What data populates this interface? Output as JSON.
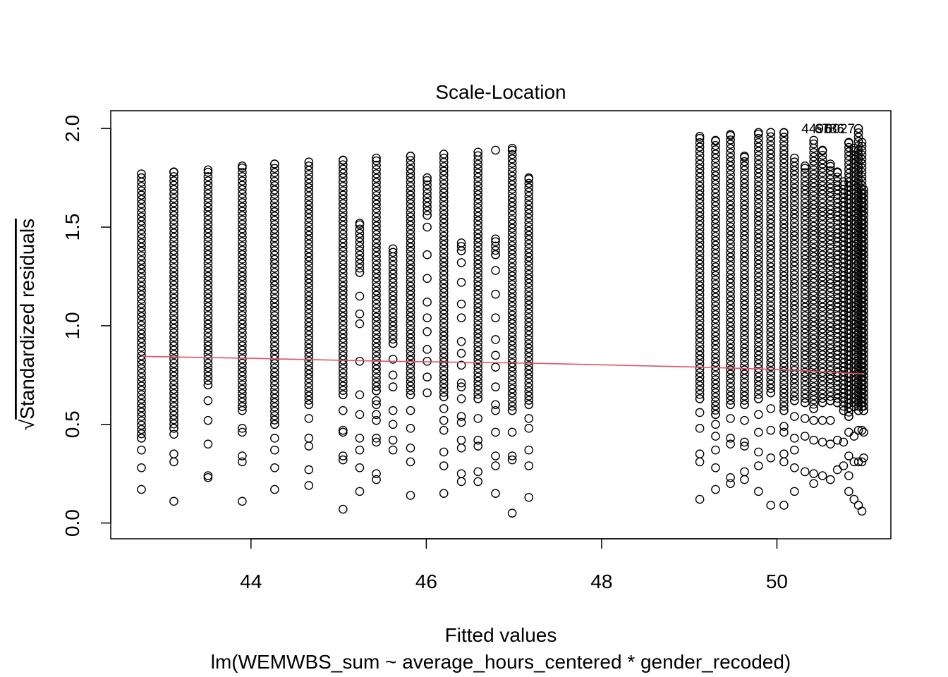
{
  "chart_data": {
    "type": "scatter",
    "title": "Scale-Location",
    "xlabel": "Fitted values",
    "ylabel": "Standardized residuals",
    "ylabel_prefix": "√",
    "caption": "lm(WEMWBS_sum ~ average_hours_centered * gender_recoded)",
    "xlim": [
      42.4,
      51.3
    ],
    "ylim": [
      -0.08,
      2.09
    ],
    "x_ticks": [
      44,
      46,
      48,
      50
    ],
    "y_ticks": [
      0.0,
      0.5,
      1.0,
      1.5,
      2.0
    ],
    "x_tick_labels": [
      "44",
      "46",
      "48",
      "50"
    ],
    "y_tick_labels": [
      "0.0",
      "0.5",
      "1.0",
      "1.5",
      "2.0"
    ],
    "grid": false,
    "legend": "none",
    "point_color": "#000000",
    "smooth_color": "#DF536B",
    "columns": [
      {
        "x": 42.75,
        "min": 0.17,
        "max": 1.77,
        "outliers": [
          0.28,
          0.37,
          0.43
        ]
      },
      {
        "x": 43.12,
        "min": 0.11,
        "max": 1.78,
        "outliers": [
          0.31,
          0.35,
          0.45,
          0.48
        ]
      },
      {
        "x": 43.51,
        "min": 0.23,
        "max": 1.79,
        "outliers": [
          0.24,
          0.4,
          0.52,
          0.62,
          0.7
        ]
      },
      {
        "x": 43.9,
        "min": 0.11,
        "max": 1.81,
        "outliers": [
          0.31,
          0.34,
          0.46,
          0.48,
          0.57,
          0.59
        ]
      },
      {
        "x": 44.27,
        "min": 0.17,
        "max": 1.82,
        "outliers": [
          0.28,
          0.37,
          0.43,
          0.5
        ]
      },
      {
        "x": 44.66,
        "min": 0.19,
        "max": 1.83,
        "outliers": [
          0.27,
          0.39,
          0.43,
          0.53,
          0.6
        ]
      },
      {
        "x": 45.05,
        "min": 0.07,
        "max": 1.84,
        "outliers": [
          0.32,
          0.34,
          0.46,
          0.47,
          0.57,
          0.65
        ]
      },
      {
        "x": 45.24,
        "min": 0.16,
        "max": 1.52,
        "outliers": [
          0.28,
          0.37,
          0.43,
          0.55,
          0.65,
          0.82,
          1.01,
          1.06,
          1.15,
          1.27
        ]
      },
      {
        "x": 45.43,
        "min": 0.22,
        "max": 1.85,
        "outliers": [
          0.25,
          0.41,
          0.43,
          0.52,
          0.55,
          0.6,
          0.62,
          0.67
        ]
      },
      {
        "x": 45.62,
        "min": 0.37,
        "max": 1.39,
        "outliers": [
          0.42,
          0.5,
          0.57,
          0.69,
          0.75,
          0.83,
          0.91
        ]
      },
      {
        "x": 45.82,
        "min": 0.14,
        "max": 1.86,
        "outliers": [
          0.31,
          0.38,
          0.48,
          0.57,
          0.65
        ]
      },
      {
        "x": 46.01,
        "min": 0.66,
        "max": 1.75,
        "outliers": [
          0.74,
          0.82,
          0.88,
          0.97,
          1.04,
          1.12,
          1.24,
          1.36,
          1.5,
          1.56
        ]
      },
      {
        "x": 46.2,
        "min": 0.15,
        "max": 1.87,
        "outliers": [
          0.29,
          0.36,
          0.47,
          0.52,
          0.58,
          0.64
        ]
      },
      {
        "x": 46.4,
        "min": 0.21,
        "max": 1.42,
        "outliers": [
          0.25,
          0.38,
          0.42,
          0.51,
          0.54,
          0.63,
          0.69,
          0.71,
          0.8,
          0.86,
          0.92,
          1.04,
          1.11,
          1.22,
          1.32,
          1.38
        ]
      },
      {
        "x": 46.59,
        "min": 0.21,
        "max": 1.88,
        "outliers": [
          0.26,
          0.39,
          0.42,
          0.53,
          0.63
        ]
      },
      {
        "x": 46.79,
        "min": 0.15,
        "max": 1.44,
        "outliers": [
          0.29,
          0.34,
          0.46,
          0.57,
          0.6,
          0.69,
          0.79,
          0.85,
          0.93,
          1.04,
          1.16,
          1.28,
          1.36
        ],
        "extra": [
          1.89
        ]
      },
      {
        "x": 46.98,
        "min": 0.05,
        "max": 1.9,
        "outliers": [
          0.32,
          0.34,
          0.46,
          0.57
        ]
      },
      {
        "x": 47.17,
        "min": 0.13,
        "max": 1.75,
        "outliers": [
          0.29,
          0.37,
          0.48,
          0.53,
          0.6
        ]
      },
      {
        "x": 49.12,
        "min": 0.12,
        "max": 1.96,
        "outliers": [
          0.31,
          0.35,
          0.48,
          0.56,
          0.63
        ]
      },
      {
        "x": 49.3,
        "min": 0.17,
        "max": 1.94,
        "outliers": [
          0.28,
          0.37,
          0.44,
          0.5,
          0.55
        ]
      },
      {
        "x": 49.47,
        "min": 0.2,
        "max": 1.97,
        "outliers": [
          0.23,
          0.4,
          0.43,
          0.53,
          0.6
        ]
      },
      {
        "x": 49.63,
        "min": 0.22,
        "max": 1.86,
        "outliers": [
          0.26,
          0.39,
          0.41,
          0.52,
          0.6
        ]
      },
      {
        "x": 49.79,
        "min": 0.16,
        "max": 1.98,
        "outliers": [
          0.29,
          0.36,
          0.46,
          0.55,
          0.63
        ]
      },
      {
        "x": 49.93,
        "min": 0.09,
        "max": 1.98,
        "outliers": [
          0.33,
          0.47,
          0.58,
          0.66
        ]
      },
      {
        "x": 50.08,
        "min": 0.09,
        "max": 1.98,
        "outliers": [
          0.31,
          0.35,
          0.46,
          0.49,
          0.57
        ]
      },
      {
        "x": 50.2,
        "min": 0.16,
        "max": 1.85,
        "outliers": [
          0.28,
          0.37,
          0.43,
          0.54,
          0.62
        ]
      },
      {
        "x": 50.32,
        "min": 0.26,
        "max": 1.81,
        "outliers": [
          0.44,
          0.53,
          0.61
        ]
      },
      {
        "x": 50.42,
        "min": 0.2,
        "max": 1.94,
        "outliers": [
          0.25,
          0.42,
          0.52,
          0.58
        ]
      },
      {
        "x": 50.52,
        "min": 0.24,
        "max": 1.89,
        "outliers": [
          0.41,
          0.52,
          0.61
        ]
      },
      {
        "x": 50.61,
        "min": 0.22,
        "max": 1.82,
        "outliers": [
          0.4,
          0.52,
          0.62
        ]
      },
      {
        "x": 50.69,
        "min": 0.27,
        "max": 1.78,
        "outliers": [
          0.42,
          0.61
        ]
      },
      {
        "x": 50.76,
        "min": 0.29,
        "max": 1.73,
        "outliers": [
          0.41,
          0.57
        ]
      },
      {
        "x": 50.82,
        "min": 0.16,
        "max": 1.93,
        "outliers": [
          0.24,
          0.34,
          0.46,
          0.54
        ]
      },
      {
        "x": 50.88,
        "min": 0.12,
        "max": 1.9,
        "outliers": [
          0.31,
          0.44,
          0.59
        ]
      },
      {
        "x": 50.93,
        "min": 0.09,
        "max": 2.0,
        "outliers": [
          0.31,
          0.47,
          0.57
        ]
      },
      {
        "x": 50.97,
        "min": 0.06,
        "max": 1.93,
        "outliers": [
          0.31,
          0.47,
          0.59
        ]
      },
      {
        "x": 50.99,
        "min": 0.33,
        "max": 1.69,
        "outliers": [
          0.46,
          0.57
        ]
      }
    ],
    "smooth": {
      "x": [
        42.75,
        44.0,
        45.5,
        47.2,
        49.12,
        50.2,
        51.0
      ],
      "y": [
        0.845,
        0.835,
        0.82,
        0.81,
        0.79,
        0.775,
        0.755
      ]
    },
    "point_labels": [
      {
        "x": 50.45,
        "y": 2.0,
        "text": "4496"
      },
      {
        "x": 50.6,
        "y": 2.0,
        "text": "6786"
      },
      {
        "x": 50.72,
        "y": 2.0,
        "text": "6027"
      }
    ]
  }
}
